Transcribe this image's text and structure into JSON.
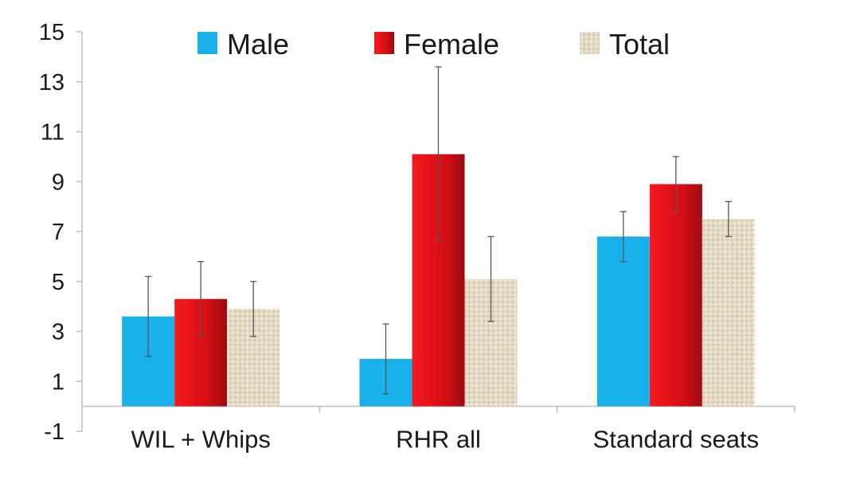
{
  "chart_data": {
    "type": "bar",
    "title": "",
    "xlabel": "",
    "ylabel": "",
    "ylim": [
      -1,
      15
    ],
    "yticks": [
      -1,
      1,
      3,
      5,
      7,
      9,
      11,
      13,
      15
    ],
    "categories": [
      "WIL + Whips",
      "RHR all",
      "Standard seats"
    ],
    "legend_position": "top",
    "grid": false,
    "series": [
      {
        "name": "Male",
        "color": "#1ab0ec",
        "values": [
          3.6,
          1.9,
          6.8
        ],
        "err_low": [
          2.0,
          0.5,
          5.8
        ],
        "err_high": [
          5.2,
          3.3,
          7.8
        ]
      },
      {
        "name": "Female",
        "color": "#e0131a",
        "values": [
          4.3,
          10.1,
          8.9
        ],
        "err_low": [
          2.8,
          6.6,
          7.8
        ],
        "err_high": [
          5.8,
          13.6,
          10.0
        ]
      },
      {
        "name": "Total",
        "color": "#e3d9c3",
        "values": [
          3.9,
          5.1,
          7.5
        ],
        "err_low": [
          2.8,
          3.4,
          6.8
        ],
        "err_high": [
          5.0,
          6.8,
          8.2
        ]
      }
    ]
  }
}
